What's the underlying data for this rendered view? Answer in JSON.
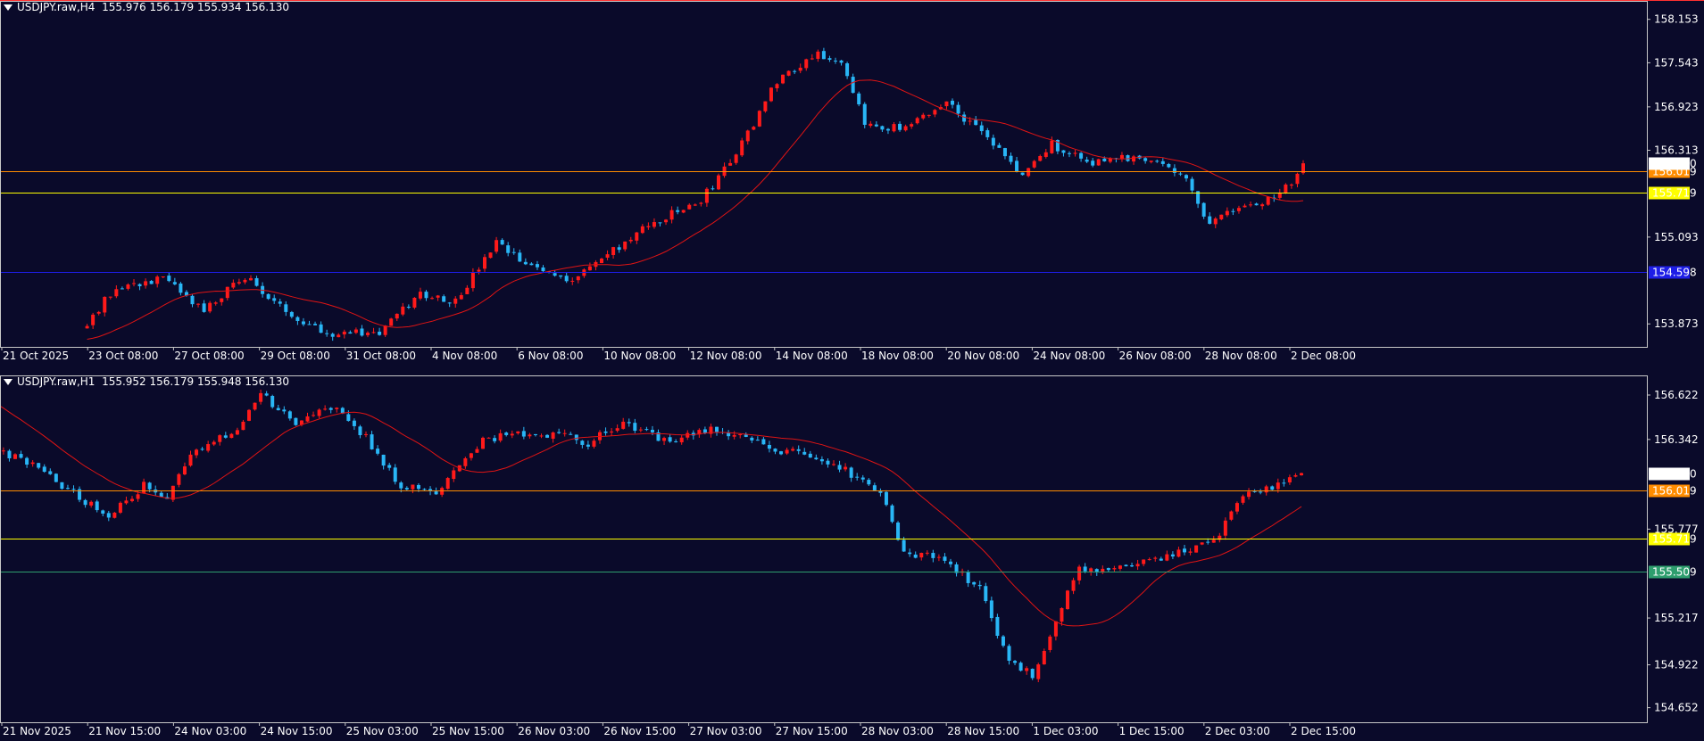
{
  "colors": {
    "background": "#0a0a2a",
    "bull": "#ff1a1a",
    "bear": "#29b6f6",
    "ma": "#e01414",
    "grid_text": "#ffffff",
    "level_orange": "#ff8c00",
    "level_yellow": "#ffff00",
    "level_blue": "#1e1ee6",
    "level_green": "#2e9e6e"
  },
  "chart_data": [
    {
      "type": "candlestick",
      "title": "USDJPY.raw,H4  155.976 156.179 155.934 156.130",
      "ylim": [
        153.55,
        158.4
      ],
      "y_ticks": [
        "158.153",
        "157.543",
        "156.923",
        "156.313",
        "155.093",
        "153.873"
      ],
      "x_ticks": [
        "21 Oct 2025",
        "23 Oct 08:00",
        "27 Oct 08:00",
        "29 Oct 08:00",
        "31 Oct 08:00",
        "4 Nov 08:00",
        "6 Nov 08:00",
        "10 Nov 08:00",
        "12 Nov 08:00",
        "14 Nov 08:00",
        "18 Nov 08:00",
        "20 Nov 08:00",
        "24 Nov 08:00",
        "26 Nov 08:00",
        "28 Nov 08:00",
        "2 Dec 08:00"
      ],
      "levels": [
        {
          "label": "156.019",
          "value": 156.019,
          "color": "#ff8c00"
        },
        {
          "label": "155.719",
          "value": 155.719,
          "color": "#ffff00"
        },
        {
          "label": "154.598",
          "value": 154.598,
          "color": "#1e1ee6"
        }
      ],
      "current_price": {
        "label": "156.130",
        "value": 156.13
      },
      "start_index": 45,
      "anchors": [
        [
          0,
          153.7
        ],
        [
          40,
          153.6
        ],
        [
          45,
          153.9
        ],
        [
          50,
          154.4
        ],
        [
          58,
          154.5
        ],
        [
          65,
          154.05
        ],
        [
          72,
          154.55
        ],
        [
          78,
          154.1
        ],
        [
          86,
          153.75
        ],
        [
          95,
          153.75
        ],
        [
          102,
          154.3
        ],
        [
          108,
          154.2
        ],
        [
          115,
          155.0
        ],
        [
          120,
          154.7
        ],
        [
          128,
          154.5
        ],
        [
          135,
          154.9
        ],
        [
          142,
          155.3
        ],
        [
          150,
          155.6
        ],
        [
          157,
          156.4
        ],
        [
          163,
          157.3
        ],
        [
          170,
          157.7
        ],
        [
          174,
          157.5
        ],
        [
          178,
          156.7
        ],
        [
          185,
          156.6
        ],
        [
          192,
          157.0
        ],
        [
          200,
          156.4
        ],
        [
          205,
          155.95
        ],
        [
          210,
          156.4
        ],
        [
          216,
          156.15
        ],
        [
          222,
          156.2
        ],
        [
          228,
          156.2
        ],
        [
          232,
          156.0
        ],
        [
          237,
          155.3
        ],
        [
          242,
          155.5
        ],
        [
          247,
          155.6
        ],
        [
          253,
          156.0
        ]
      ]
    },
    {
      "type": "candlestick",
      "title": "USDJPY.raw,H1  155.952 156.179 155.948 156.130",
      "ylim": [
        154.56,
        156.74
      ],
      "y_ticks": [
        "156.622",
        "156.342",
        "155.777",
        "155.217",
        "154.922",
        "154.652"
      ],
      "x_ticks": [
        "21 Nov 2025",
        "21 Nov 15:00",
        "24 Nov 03:00",
        "24 Nov 15:00",
        "25 Nov 03:00",
        "25 Nov 15:00",
        "26 Nov 03:00",
        "26 Nov 15:00",
        "27 Nov 03:00",
        "27 Nov 15:00",
        "28 Nov 03:00",
        "28 Nov 15:00",
        "1 Dec 03:00",
        "1 Dec 15:00",
        "2 Dec 03:00",
        "2 Dec 15:00"
      ],
      "levels": [
        {
          "label": "156.019",
          "value": 156.019,
          "color": "#ff8c00"
        },
        {
          "label": "155.719",
          "value": 155.719,
          "color": "#ffff00"
        },
        {
          "label": "155.509",
          "value": 155.509,
          "color": "#2e9e6e"
        }
      ],
      "current_price": {
        "label": "156.130",
        "value": 156.13
      },
      "start_index": 0,
      "anchors": [
        [
          0,
          156.6
        ],
        [
          10,
          156.62
        ],
        [
          18,
          156.4
        ],
        [
          22,
          156.55
        ],
        [
          30,
          156.7
        ],
        [
          40,
          156.85
        ],
        [
          50,
          156.72
        ],
        [
          58,
          156.62
        ],
        [
          65,
          156.3
        ],
        [
          72,
          156.2
        ],
        [
          80,
          156.0
        ],
        [
          86,
          155.85
        ],
        [
          92,
          156.05
        ],
        [
          96,
          155.95
        ],
        [
          100,
          156.25
        ],
        [
          108,
          156.42
        ],
        [
          112,
          156.62
        ],
        [
          118,
          156.45
        ],
        [
          124,
          156.55
        ],
        [
          130,
          156.35
        ],
        [
          136,
          156.05
        ],
        [
          142,
          156.0
        ],
        [
          150,
          156.35
        ],
        [
          156,
          156.37
        ],
        [
          162,
          156.38
        ],
        [
          168,
          156.32
        ],
        [
          174,
          156.45
        ],
        [
          182,
          156.32
        ],
        [
          188,
          156.4
        ],
        [
          194,
          156.38
        ],
        [
          200,
          156.28
        ],
        [
          206,
          156.25
        ],
        [
          212,
          156.15
        ],
        [
          218,
          156.0
        ],
        [
          222,
          155.62
        ],
        [
          228,
          155.6
        ],
        [
          235,
          155.4
        ],
        [
          240,
          154.95
        ],
        [
          244,
          154.85
        ],
        [
          248,
          155.2
        ],
        [
          252,
          155.55
        ],
        [
          256,
          155.5
        ],
        [
          260,
          155.55
        ],
        [
          266,
          155.6
        ],
        [
          272,
          155.65
        ],
        [
          276,
          155.75
        ],
        [
          280,
          156.0
        ],
        [
          286,
          156.05
        ],
        [
          290,
          156.13
        ]
      ]
    }
  ]
}
